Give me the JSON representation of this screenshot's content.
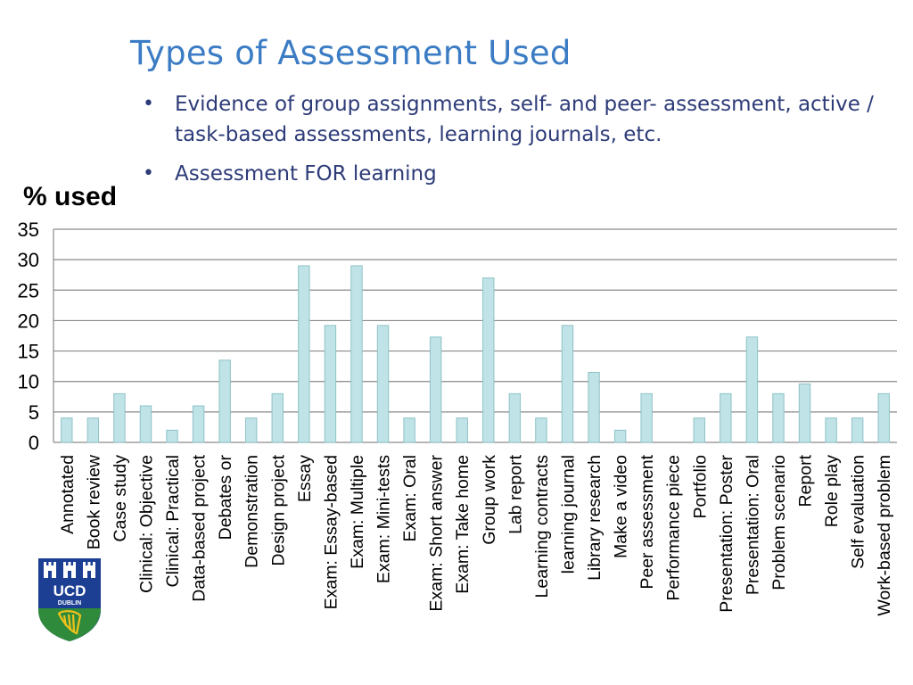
{
  "slide": {
    "title": "Types of Assessment Used",
    "bullets": [
      "Evidence of group assignments, self- and peer- assessment, active / task-based assessments, learning journals, etc.",
      "Assessment FOR learning"
    ]
  },
  "logo": {
    "line1": "UCD",
    "line2": "DUBLIN"
  },
  "colors": {
    "title": "#3b7cc4",
    "bullet_text": "#2d3b78",
    "bar_fill": "#bfe3e6",
    "bar_stroke": "#8fc3c8",
    "grid": "#8a8a8a",
    "logo_blue": "#1c3f94",
    "logo_gold": "#f2c21b",
    "logo_green": "#2f8a3b"
  },
  "chart_data": {
    "type": "bar",
    "title": "",
    "ylabel": "% used",
    "xlabel": "",
    "ylim": [
      0,
      35
    ],
    "yticks": [
      0,
      5,
      10,
      15,
      20,
      25,
      30,
      35
    ],
    "grid": true,
    "categories": [
      "Annotated",
      "Book review",
      "Case study",
      "Clinical: Objective",
      "Clinical: Practical",
      "Data-based project",
      "Debates or",
      "Demonstration",
      "Design project",
      "Essay",
      "Exam: Essay-based",
      "Exam: Multiple",
      "Exam: Mini-tests",
      "Exam: Oral",
      "Exam: Short answer",
      "Exam: Take home",
      "Group work",
      "Lab report",
      "Learning contracts",
      "learning journal",
      "Library research",
      "Make a video",
      "Peer assessment",
      "Performance piece",
      "Portfolio",
      "Presentation: Poster",
      "Presentation: Oral",
      "Problem scenario",
      "Report",
      "Role play",
      "Self evaluation",
      "Work-based problem"
    ],
    "values": [
      4,
      4,
      8,
      6,
      2,
      6,
      13.5,
      4,
      8,
      29,
      19.2,
      29,
      19.2,
      4,
      17.3,
      4,
      27,
      8,
      4,
      19.2,
      11.5,
      2,
      8,
      0,
      4,
      8,
      17.3,
      8,
      9.6,
      4,
      4,
      8
    ]
  }
}
